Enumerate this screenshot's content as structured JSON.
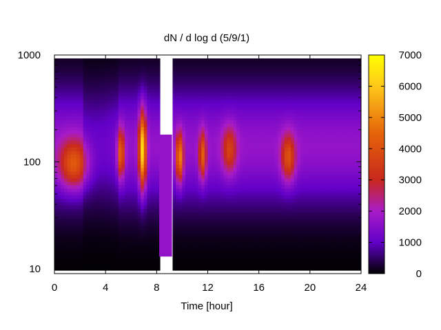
{
  "chart_data": {
    "type": "heatmap",
    "title": "dN / d log d (5/9/1)",
    "xlabel": "Time [hour]",
    "ylabel": "",
    "xlim": [
      0,
      24
    ],
    "ylim": [
      9,
      1000
    ],
    "y_scale": "log",
    "x_ticks": [
      0,
      4,
      8,
      12,
      16,
      20,
      24
    ],
    "y_ticks": [
      10,
      100,
      1000
    ],
    "colorbar": {
      "range": [
        0,
        7000
      ],
      "ticks": [
        0,
        1000,
        2000,
        3000,
        4000,
        5000,
        6000,
        7000
      ],
      "colormap": [
        "#000000",
        "#6200c8",
        "#a81cc8",
        "#c8281c",
        "#e6640a",
        "#ffc81a",
        "#ffff00"
      ],
      "colormap_stops": [
        0,
        1000,
        2000,
        3000,
        4500,
        6000,
        7000
      ]
    },
    "data_gaps_hours": [
      [
        8.15,
        9.2
      ]
    ],
    "peaks": [
      {
        "time_hour": 1.5,
        "diameter": 95,
        "value": 4200
      },
      {
        "time_hour": 5.2,
        "diameter": 120,
        "value": 4300
      },
      {
        "time_hour": 6.9,
        "diameter": 130,
        "value": 6200
      },
      {
        "time_hour": 9.8,
        "diameter": 110,
        "value": 5000
      },
      {
        "time_hour": 11.6,
        "diameter": 115,
        "value": 4200
      },
      {
        "time_hour": 13.7,
        "diameter": 130,
        "value": 3500
      },
      {
        "time_hour": 18.3,
        "diameter": 110,
        "value": 3900
      }
    ]
  }
}
